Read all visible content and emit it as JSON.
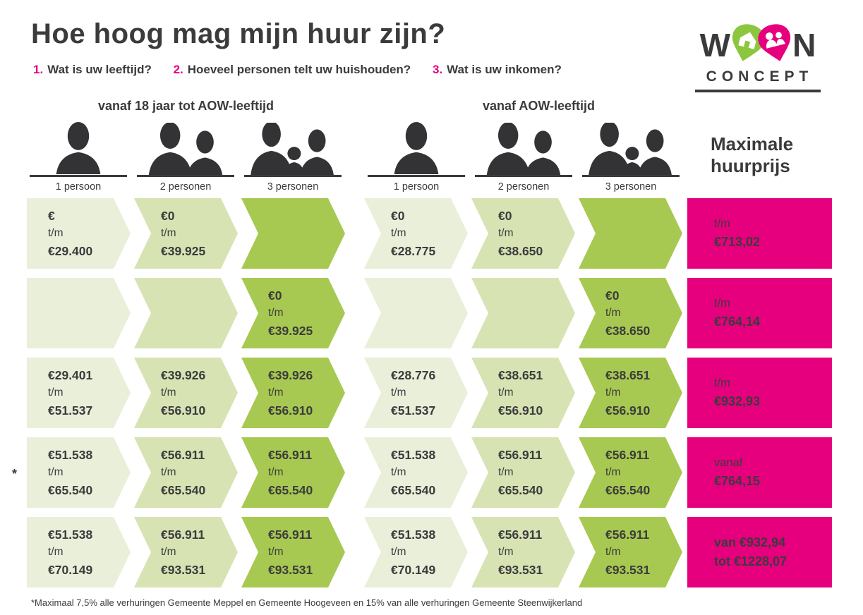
{
  "header": {
    "title": "Hoe hoog mag mijn huur zijn?",
    "questions": [
      {
        "number": "1.",
        "text": "Wat is uw leeftijd?"
      },
      {
        "number": "2.",
        "text": "Hoeveel personen telt uw huishouden?"
      },
      {
        "number": "3.",
        "text": "Wat is uw inkomen?"
      }
    ]
  },
  "logo": {
    "left_letter": "W",
    "right_letter": "N",
    "wordmark_sub": "CONCEPT"
  },
  "age_groups": [
    {
      "header": "vanaf 18 jaar tot AOW-leeftijd",
      "person_labels": [
        "1 persoon",
        "2 personen",
        "3 personen"
      ]
    },
    {
      "header": "vanaf AOW-leeftijd",
      "person_labels": [
        "1 persoon",
        "2 personen",
        "3 personen"
      ]
    }
  ],
  "max_rent_header": "Maximale huurprijs",
  "asterisk_marker": "*",
  "footnote": "*Maximaal 7,5% alle verhuringen Gemeente Meppel en Gemeente Hoogeveen en 15% van alle verhuringen Gemeente Steenwijkerland",
  "colors": {
    "magenta": "#e6007e",
    "lime_green": "#a7c951",
    "light_green": "#d8e3b4",
    "lightest_green": "#eaefda",
    "charcoal": "#3b3b3d",
    "logo_green": "#8cc63e"
  },
  "table": {
    "rows": [
      {
        "group1": [
          [
            "€",
            "t/m",
            "€29.400"
          ],
          [
            "€0",
            "t/m",
            "€39.925"
          ],
          []
        ],
        "group2": [
          [
            "€0",
            "t/m",
            "€28.775"
          ],
          [
            "€0",
            "t/m",
            "€38.650"
          ],
          []
        ],
        "max_rent": [
          {
            "text": "t/m",
            "bold": false
          },
          {
            "text": "€713,02",
            "bold": true
          }
        ]
      },
      {
        "group1": [
          [],
          [],
          [
            "€0",
            "t/m",
            "€39.925"
          ]
        ],
        "group2": [
          [],
          [],
          [
            "€0",
            "t/m",
            "€38.650"
          ]
        ],
        "max_rent": [
          {
            "text": "t/m",
            "bold": false
          },
          {
            "text": "€764,14",
            "bold": true
          }
        ]
      },
      {
        "group1": [
          [
            "€29.401",
            "t/m",
            "€51.537"
          ],
          [
            "€39.926",
            "t/m",
            "€56.910"
          ],
          [
            "€39.926",
            "t/m",
            "€56.910"
          ]
        ],
        "group2": [
          [
            "€28.776",
            "t/m",
            "€51.537"
          ],
          [
            "€38.651",
            "t/m",
            "€56.910"
          ],
          [
            "€38.651",
            "t/m",
            "€56.910"
          ]
        ],
        "max_rent": [
          {
            "text": "t/m",
            "bold": false
          },
          {
            "text": "€932,93",
            "bold": true
          }
        ]
      },
      {
        "group1": [
          [
            "€51.538",
            "t/m",
            "€65.540"
          ],
          [
            "€56.911",
            "t/m",
            "€65.540"
          ],
          [
            "€56.911",
            "t/m",
            "€65.540"
          ]
        ],
        "group2": [
          [
            "€51.538",
            "t/m",
            "€65.540"
          ],
          [
            "€56.911",
            "t/m",
            "€65.540"
          ],
          [
            "€56.911",
            "t/m",
            "€65.540"
          ]
        ],
        "max_rent": [
          {
            "text": "vanaf",
            "bold": false
          },
          {
            "text": "€764,15",
            "bold": true
          }
        ],
        "asterisk": true
      },
      {
        "group1": [
          [
            "€51.538",
            "t/m",
            "€70.149"
          ],
          [
            "€56.911",
            "t/m",
            "€93.531"
          ],
          [
            "€56.911",
            "t/m",
            "€93.531"
          ]
        ],
        "group2": [
          [
            "€51.538",
            "t/m",
            "€70.149"
          ],
          [
            "€56.911",
            "t/m",
            "€93.531"
          ],
          [
            "€56.911",
            "t/m",
            "€93.531"
          ]
        ],
        "max_rent": [
          {
            "text": "van €932,94",
            "bold": true
          },
          {
            "text": "tot €1228,07",
            "bold": true
          }
        ]
      }
    ]
  }
}
